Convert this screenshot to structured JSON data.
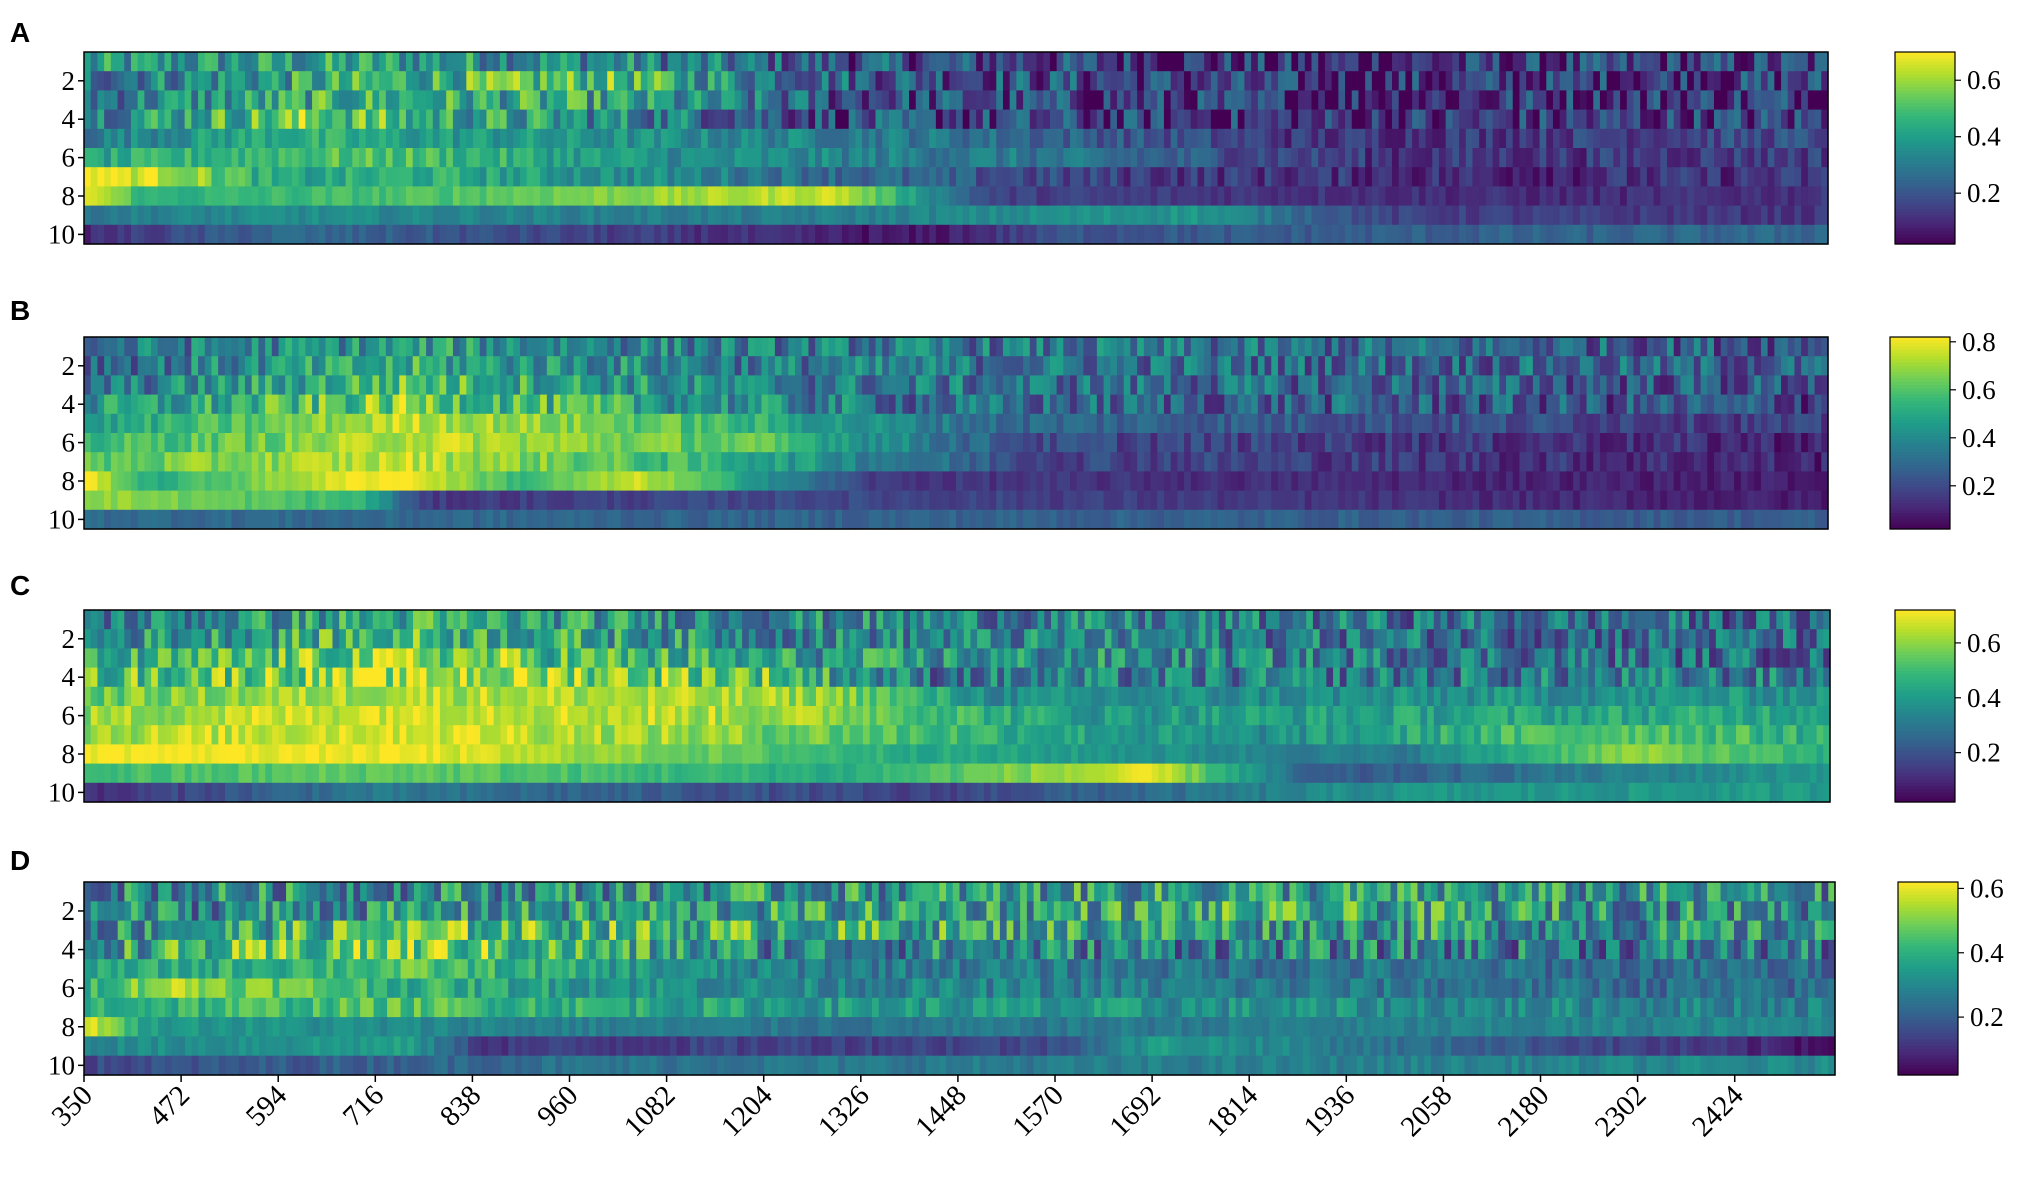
{
  "colormap": {
    "name": "viridis",
    "stops": [
      "#440154",
      "#482878",
      "#3e4a89",
      "#31688e",
      "#26828e",
      "#1f9e89",
      "#35b779",
      "#6ece58",
      "#b5de2b",
      "#fde725"
    ]
  },
  "chart_data": {
    "type": "heatmap",
    "x_ticks": [
      "350",
      "472",
      "594",
      "716",
      "838",
      "960",
      "1082",
      "1204",
      "1326",
      "1448",
      "1570",
      "1692",
      "1814",
      "1936",
      "2058",
      "2180",
      "2302",
      "2424"
    ],
    "x_range": [
      350,
      2550
    ],
    "y_ticks": [
      "2",
      "4",
      "6",
      "8",
      "10"
    ],
    "rows": 10,
    "panels": [
      {
        "label": "A",
        "colorbar_ticks": [
          "0.2",
          "0.4",
          "0.6"
        ],
        "colorbar_values": [
          0.2,
          0.4,
          0.6
        ],
        "vmin": 0.02,
        "vmax": 0.7,
        "row_profiles": [
          [
            [
              350,
              0.35
            ],
            [
              700,
              0.4
            ],
            [
              1000,
              0.35
            ],
            [
              1300,
              0.2
            ],
            [
              1900,
              0.1
            ],
            [
              2550,
              0.15
            ]
          ],
          [
            [
              350,
              0.3
            ],
            [
              750,
              0.45
            ],
            [
              1000,
              0.5
            ],
            [
              1300,
              0.25
            ],
            [
              1900,
              0.1
            ],
            [
              2550,
              0.15
            ]
          ],
          [
            [
              350,
              0.3
            ],
            [
              700,
              0.45
            ],
            [
              1000,
              0.4
            ],
            [
              1300,
              0.2
            ],
            [
              1900,
              0.1
            ],
            [
              2550,
              0.15
            ]
          ],
          [
            [
              350,
              0.35
            ],
            [
              650,
              0.55
            ],
            [
              760,
              0.45
            ],
            [
              1100,
              0.3
            ],
            [
              1300,
              0.18
            ],
            [
              1900,
              0.1
            ],
            [
              2550,
              0.15
            ]
          ],
          [
            [
              350,
              0.3
            ],
            [
              600,
              0.45
            ],
            [
              760,
              0.4
            ],
            [
              1100,
              0.35
            ],
            [
              1400,
              0.3
            ],
            [
              1900,
              0.12
            ],
            [
              2550,
              0.18
            ]
          ],
          [
            [
              350,
              0.4
            ],
            [
              600,
              0.5
            ],
            [
              760,
              0.5
            ],
            [
              1100,
              0.35
            ],
            [
              1500,
              0.3
            ],
            [
              2000,
              0.12
            ],
            [
              2550,
              0.15
            ]
          ],
          [
            [
              350,
              0.7
            ],
            [
              450,
              0.65
            ],
            [
              600,
              0.4
            ],
            [
              760,
              0.45
            ],
            [
              1200,
              0.3
            ],
            [
              1600,
              0.15
            ],
            [
              2100,
              0.1
            ],
            [
              2550,
              0.12
            ]
          ],
          [
            [
              350,
              0.7
            ],
            [
              430,
              0.45
            ],
            [
              760,
              0.5
            ],
            [
              1300,
              0.65
            ],
            [
              1500,
              0.15
            ],
            [
              2200,
              0.1
            ],
            [
              2550,
              0.12
            ]
          ],
          [
            [
              350,
              0.3
            ],
            [
              600,
              0.35
            ],
            [
              1200,
              0.3
            ],
            [
              1750,
              0.38
            ],
            [
              2000,
              0.15
            ],
            [
              2550,
              0.12
            ]
          ],
          [
            [
              350,
              0.1
            ],
            [
              600,
              0.25
            ],
            [
              1400,
              0.05
            ],
            [
              1600,
              0.2
            ],
            [
              2550,
              0.25
            ]
          ]
        ]
      },
      {
        "label": "B",
        "colorbar_ticks": [
          "0.2",
          "0.4",
          "0.6",
          "0.8"
        ],
        "colorbar_values": [
          0.2,
          0.4,
          0.6,
          0.8
        ],
        "vmin": 0.02,
        "vmax": 0.82,
        "row_profiles": [
          [
            [
              350,
              0.3
            ],
            [
              760,
              0.45
            ],
            [
              1200,
              0.35
            ],
            [
              2550,
              0.25
            ]
          ],
          [
            [
              350,
              0.3
            ],
            [
              760,
              0.5
            ],
            [
              1200,
              0.35
            ],
            [
              2550,
              0.25
            ]
          ],
          [
            [
              350,
              0.3
            ],
            [
              760,
              0.6
            ],
            [
              1200,
              0.35
            ],
            [
              2550,
              0.22
            ]
          ],
          [
            [
              350,
              0.4
            ],
            [
              760,
              0.65
            ],
            [
              1100,
              0.45
            ],
            [
              1400,
              0.3
            ],
            [
              2550,
              0.2
            ]
          ],
          [
            [
              350,
              0.45
            ],
            [
              760,
              0.75
            ],
            [
              1100,
              0.6
            ],
            [
              1500,
              0.3
            ],
            [
              2550,
              0.15
            ]
          ],
          [
            [
              350,
              0.55
            ],
            [
              600,
              0.65
            ],
            [
              760,
              0.75
            ],
            [
              1200,
              0.6
            ],
            [
              1550,
              0.2
            ],
            [
              2550,
              0.1
            ]
          ],
          [
            [
              350,
              0.6
            ],
            [
              760,
              0.75
            ],
            [
              1200,
              0.5
            ],
            [
              1550,
              0.2
            ],
            [
              2550,
              0.1
            ]
          ],
          [
            [
              350,
              0.85
            ],
            [
              430,
              0.5
            ],
            [
              740,
              0.85
            ],
            [
              900,
              0.55
            ],
            [
              1050,
              0.75
            ],
            [
              1350,
              0.15
            ],
            [
              2550,
              0.08
            ]
          ],
          [
            [
              350,
              0.7
            ],
            [
              700,
              0.55
            ],
            [
              780,
              0.15
            ],
            [
              1250,
              0.2
            ],
            [
              2550,
              0.08
            ]
          ],
          [
            [
              350,
              0.3
            ],
            [
              1000,
              0.28
            ],
            [
              2550,
              0.25
            ]
          ]
        ]
      },
      {
        "label": "C",
        "colorbar_ticks": [
          "0.2",
          "0.4",
          "0.6"
        ],
        "colorbar_values": [
          0.2,
          0.4,
          0.6
        ],
        "vmin": 0.02,
        "vmax": 0.72,
        "row_profiles": [
          [
            [
              350,
              0.3
            ],
            [
              760,
              0.45
            ],
            [
              1200,
              0.35
            ],
            [
              2550,
              0.25
            ]
          ],
          [
            [
              350,
              0.35
            ],
            [
              760,
              0.5
            ],
            [
              1200,
              0.35
            ],
            [
              2550,
              0.25
            ]
          ],
          [
            [
              350,
              0.4
            ],
            [
              760,
              0.6
            ],
            [
              1200,
              0.4
            ],
            [
              2550,
              0.25
            ]
          ],
          [
            [
              350,
              0.5
            ],
            [
              760,
              0.65
            ],
            [
              1200,
              0.55
            ],
            [
              1400,
              0.3
            ],
            [
              2550,
              0.3
            ]
          ],
          [
            [
              350,
              0.55
            ],
            [
              760,
              0.65
            ],
            [
              1300,
              0.6
            ],
            [
              1500,
              0.35
            ],
            [
              2550,
              0.38
            ]
          ],
          [
            [
              350,
              0.6
            ],
            [
              760,
              0.7
            ],
            [
              1300,
              0.6
            ],
            [
              1600,
              0.4
            ],
            [
              2550,
              0.45
            ]
          ],
          [
            [
              350,
              0.62
            ],
            [
              760,
              0.7
            ],
            [
              1300,
              0.55
            ],
            [
              1800,
              0.35
            ],
            [
              2300,
              0.55
            ],
            [
              2550,
              0.45
            ]
          ],
          [
            [
              350,
              0.72
            ],
            [
              760,
              0.7
            ],
            [
              1400,
              0.45
            ],
            [
              2000,
              0.3
            ],
            [
              2300,
              0.6
            ],
            [
              2550,
              0.45
            ]
          ],
          [
            [
              350,
              0.5
            ],
            [
              760,
              0.55
            ],
            [
              1300,
              0.45
            ],
            [
              1700,
              0.68
            ],
            [
              1900,
              0.2
            ],
            [
              2550,
              0.4
            ]
          ],
          [
            [
              350,
              0.1
            ],
            [
              700,
              0.3
            ],
            [
              1400,
              0.15
            ],
            [
              2000,
              0.38
            ],
            [
              2550,
              0.4
            ]
          ]
        ]
      },
      {
        "label": "D",
        "colorbar_ticks": [
          "0.2",
          "0.4",
          "0.6"
        ],
        "colorbar_values": [
          0.2,
          0.4,
          0.6
        ],
        "vmin": 0.02,
        "vmax": 0.62,
        "row_profiles": [
          [
            [
              350,
              0.3
            ],
            [
              1800,
              0.35
            ],
            [
              2550,
              0.3
            ]
          ],
          [
            [
              350,
              0.3
            ],
            [
              1800,
              0.38
            ],
            [
              2550,
              0.3
            ]
          ],
          [
            [
              350,
              0.3
            ],
            [
              760,
              0.45
            ],
            [
              1800,
              0.35
            ],
            [
              2550,
              0.3
            ]
          ],
          [
            [
              350,
              0.35
            ],
            [
              760,
              0.5
            ],
            [
              1200,
              0.3
            ],
            [
              2550,
              0.25
            ]
          ],
          [
            [
              350,
              0.35
            ],
            [
              760,
              0.45
            ],
            [
              1200,
              0.28
            ],
            [
              2550,
              0.22
            ]
          ],
          [
            [
              350,
              0.4
            ],
            [
              450,
              0.55
            ],
            [
              760,
              0.4
            ],
            [
              1200,
              0.3
            ],
            [
              2550,
              0.22
            ]
          ],
          [
            [
              350,
              0.4
            ],
            [
              760,
              0.45
            ],
            [
              1200,
              0.35
            ],
            [
              2550,
              0.28
            ]
          ],
          [
            [
              350,
              0.62
            ],
            [
              430,
              0.35
            ],
            [
              760,
              0.3
            ],
            [
              1300,
              0.25
            ],
            [
              2550,
              0.3
            ]
          ],
          [
            [
              350,
              0.3
            ],
            [
              760,
              0.35
            ],
            [
              850,
              0.12
            ],
            [
              1550,
              0.15
            ],
            [
              1700,
              0.35
            ],
            [
              2550,
              0.05
            ]
          ],
          [
            [
              350,
              0.15
            ],
            [
              1000,
              0.25
            ],
            [
              2550,
              0.3
            ]
          ]
        ]
      }
    ]
  }
}
